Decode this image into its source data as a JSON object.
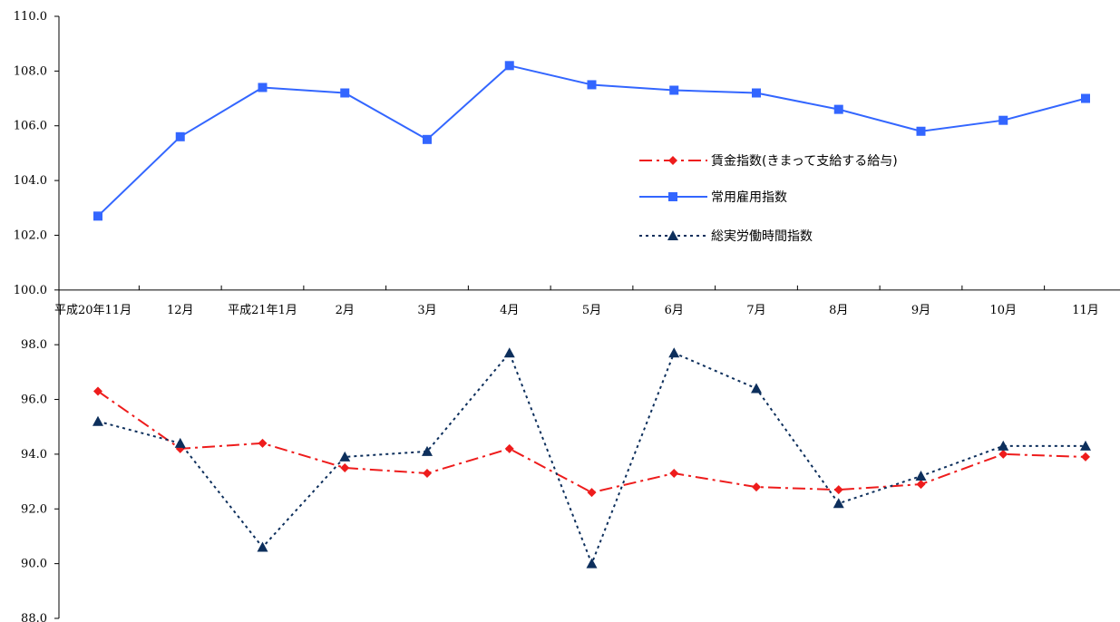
{
  "chart_data": {
    "type": "line",
    "categories": [
      "平成20年11月",
      "12月",
      "平成21年1月",
      "2月",
      "3月",
      "4月",
      "5月",
      "6月",
      "7月",
      "8月",
      "9月",
      "10月",
      "11月"
    ],
    "y_ticks": [
      "88.0",
      "90.0",
      "92.0",
      "94.0",
      "96.0",
      "98.0",
      "100.0",
      "102.0",
      "104.0",
      "106.0",
      "108.0",
      "110.0"
    ],
    "ylim": [
      88,
      110
    ],
    "x_axis_at": 100,
    "grid": false,
    "legend_position": "right-center",
    "series": [
      {
        "name": "賃金指数(きまって支給する給与)",
        "color": "#ee1c1c",
        "marker": "diamond",
        "line_style": "dash-dot",
        "values": [
          96.3,
          94.2,
          94.4,
          93.5,
          93.3,
          94.2,
          92.6,
          93.3,
          92.8,
          92.7,
          92.9,
          94.0,
          93.9
        ]
      },
      {
        "name": "常用雇用指数",
        "color": "#3366ff",
        "marker": "square",
        "line_style": "solid",
        "values": [
          102.7,
          105.6,
          107.4,
          107.2,
          105.5,
          108.2,
          107.5,
          107.3,
          107.2,
          106.6,
          105.8,
          106.2,
          107.0
        ]
      },
      {
        "name": "総実労働時間指数",
        "color": "#0d2f5c",
        "marker": "triangle",
        "line_style": "dotted",
        "values": [
          95.2,
          94.4,
          90.6,
          93.9,
          94.1,
          97.7,
          90.0,
          97.7,
          96.4,
          92.2,
          93.2,
          94.3,
          94.3
        ]
      }
    ]
  }
}
